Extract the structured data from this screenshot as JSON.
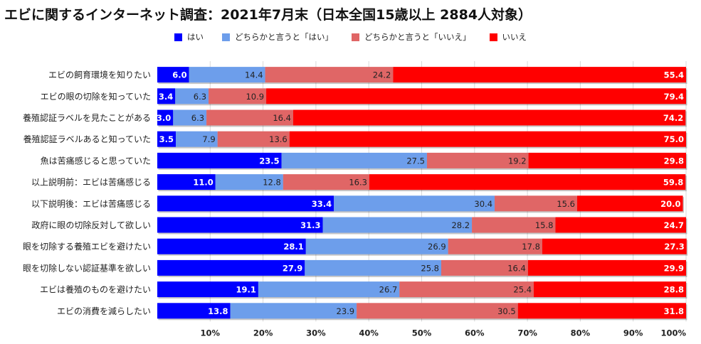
{
  "chart_data": {
    "type": "bar",
    "orientation": "horizontal",
    "stacked": true,
    "title": "エビに関するインターネット調査：2021年7月末（日本全国15歳以上 2884人対象）",
    "xlabel": "",
    "ylabel": "",
    "xlim": [
      0,
      100
    ],
    "xticks": [
      "10%",
      "20%",
      "30%",
      "40%",
      "50%",
      "60%",
      "70%",
      "80%",
      "90%",
      "100%"
    ],
    "legend_position": "top",
    "categories": [
      "エビの飼育環境を知りたい",
      "エビの眼の切除を知っていた",
      "養殖認証ラベルを見たことがある",
      "養殖認証ラベルあると知っていた",
      "魚は苦痛感じると思っていた",
      "以上説明前：エビは苦痛感じる",
      "以下説明後：エビは苦痛感じる",
      "政府に眼の切除反対して欲しい",
      "眼を切除する養殖エビを避けたい",
      "眼を切除しない認証基準を欲しい",
      "エビは養殖のものを避けたい",
      "エビの消費を減らしたい"
    ],
    "series": [
      {
        "name": "はい",
        "color": "#0000ff",
        "label_color": "#ffffff",
        "values": [
          6.0,
          3.4,
          3.0,
          3.5,
          23.5,
          11.0,
          33.4,
          31.3,
          28.1,
          27.9,
          19.1,
          13.8
        ]
      },
      {
        "name": "どちらかと言うと「はい」",
        "color": "#6d9eeb",
        "label_color": "#222222",
        "values": [
          14.4,
          6.3,
          6.3,
          7.9,
          27.5,
          12.8,
          30.4,
          28.2,
          26.9,
          25.8,
          26.7,
          23.9
        ]
      },
      {
        "name": "どちらかと言うと「いいえ」",
        "color": "#e06666",
        "label_color": "#222222",
        "values": [
          24.2,
          10.9,
          16.4,
          13.6,
          19.2,
          16.3,
          15.6,
          15.8,
          17.8,
          16.4,
          25.4,
          30.5
        ]
      },
      {
        "name": "いいえ",
        "color": "#ff0000",
        "label_color": "#ffffff",
        "values": [
          55.4,
          79.4,
          74.2,
          75.0,
          29.8,
          59.8,
          20.0,
          24.7,
          27.3,
          29.9,
          28.8,
          31.8
        ]
      }
    ]
  }
}
